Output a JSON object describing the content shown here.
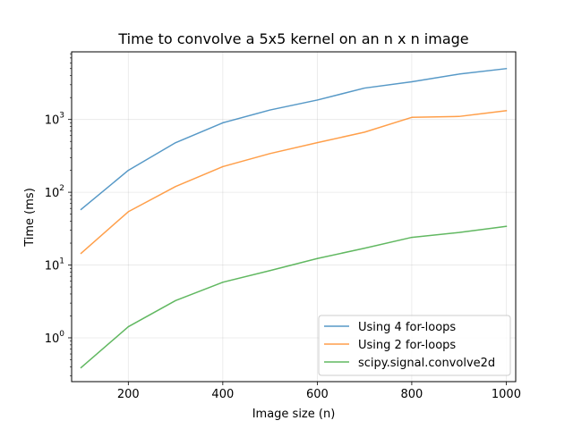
{
  "chart_data": {
    "type": "line",
    "title": "Time to convolve a 5x5 kernel on an n x n image",
    "xlabel": "Image size (n)",
    "ylabel": "Time (ms)",
    "xlim": [
      80,
      1020
    ],
    "ylim": [
      0.25,
      8500
    ],
    "yscale": "log",
    "grid": true,
    "legend_position": "lower right",
    "x_ticks": [
      200,
      400,
      600,
      800,
      1000
    ],
    "y_ticks": [
      {
        "value": 1,
        "base": "10",
        "exp": "0"
      },
      {
        "value": 10,
        "base": "10",
        "exp": "1"
      },
      {
        "value": 100,
        "base": "10",
        "exp": "2"
      },
      {
        "value": 1000,
        "base": "10",
        "exp": "3"
      }
    ],
    "x": [
      100,
      200,
      300,
      400,
      500,
      600,
      700,
      800,
      900,
      1000
    ],
    "series": [
      {
        "name": "Using 4 for-loops",
        "color": "#1f77b4",
        "values": [
          58,
          200,
          480,
          900,
          1350,
          1850,
          2700,
          3300,
          4200,
          5000
        ]
      },
      {
        "name": "Using 2 for-loops",
        "color": "#ff7f0e",
        "values": [
          14.5,
          54,
          120,
          225,
          340,
          480,
          670,
          1070,
          1100,
          1320
        ]
      },
      {
        "name": "scipy.signal.convolve2d",
        "color": "#2ca02c",
        "values": [
          0.39,
          1.42,
          3.25,
          5.8,
          8.4,
          12.3,
          17,
          24,
          28,
          34
        ]
      }
    ]
  }
}
